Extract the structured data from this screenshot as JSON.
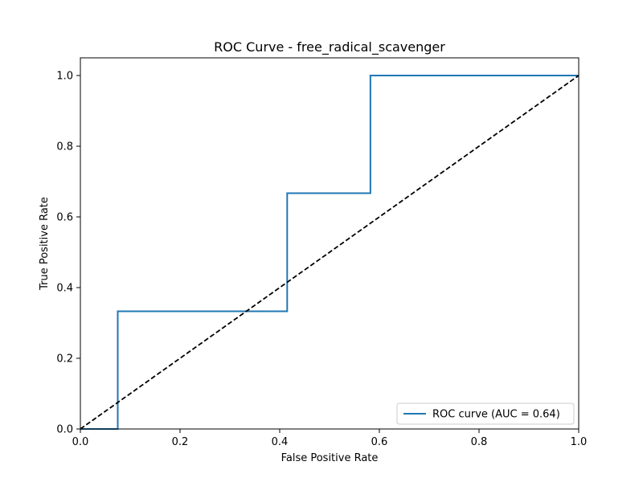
{
  "chart_data": {
    "type": "line",
    "title": "ROC Curve - free_radical_scavenger",
    "xlabel": "False Positive Rate",
    "ylabel": "True Positive Rate",
    "xlim": [
      0.0,
      1.0
    ],
    "ylim": [
      0.0,
      1.05
    ],
    "x_ticks": [
      "0.0",
      "0.2",
      "0.4",
      "0.6",
      "0.8",
      "1.0"
    ],
    "y_ticks": [
      "0.0",
      "0.2",
      "0.4",
      "0.6",
      "0.8",
      "1.0"
    ],
    "grid": false,
    "legend_placement": "lower-right",
    "series": [
      {
        "name": "ROC curve (AUC = 0.64)",
        "color": "#1f77b4",
        "style": "solid",
        "x": [
          0.0,
          0.075,
          0.075,
          0.415,
          0.415,
          0.582,
          0.582,
          1.0
        ],
        "y": [
          0.0,
          0.0,
          0.333,
          0.333,
          0.667,
          0.667,
          1.0,
          1.0
        ]
      },
      {
        "color": "#000000",
        "style": "dashed",
        "x": [
          0.0,
          1.0
        ],
        "y": [
          0.0,
          1.0
        ]
      }
    ]
  }
}
